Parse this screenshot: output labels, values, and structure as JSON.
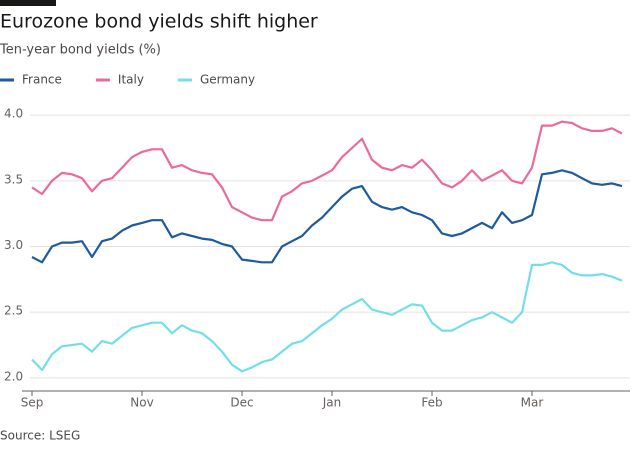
{
  "chart_data": {
    "type": "line",
    "title": "Eurozone bond yields shift higher",
    "subtitle": "Ten-year bond yields (%)",
    "source": "Source: LSEG",
    "categories": [
      "Sep",
      null,
      null,
      null,
      null,
      null,
      null,
      null,
      null,
      null,
      null,
      "Nov",
      null,
      null,
      null,
      null,
      null,
      null,
      null,
      null,
      null,
      "Dec",
      null,
      null,
      null,
      null,
      null,
      null,
      null,
      null,
      "Jan",
      null,
      null,
      null,
      null,
      null,
      null,
      null,
      null,
      null,
      "Feb",
      null,
      null,
      null,
      null,
      null,
      null,
      null,
      null,
      null,
      "Mar",
      null,
      null,
      null,
      null,
      null,
      null,
      null,
      null,
      null
    ],
    "series": [
      {
        "name": "France",
        "color": "#1d5a9e",
        "values": [
          2.92,
          2.88,
          3.0,
          3.03,
          3.03,
          3.04,
          2.92,
          3.04,
          3.06,
          3.12,
          3.16,
          3.18,
          3.2,
          3.2,
          3.07,
          3.1,
          3.08,
          3.06,
          3.05,
          3.02,
          3.0,
          2.9,
          2.89,
          2.88,
          2.88,
          3.0,
          3.04,
          3.08,
          3.16,
          3.22,
          3.3,
          3.38,
          3.44,
          3.46,
          3.34,
          3.3,
          3.28,
          3.3,
          3.26,
          3.24,
          3.2,
          3.1,
          3.08,
          3.1,
          3.14,
          3.18,
          3.14,
          3.26,
          3.18,
          3.2,
          3.24,
          3.55,
          3.56,
          3.58,
          3.56,
          3.52,
          3.48,
          3.47,
          3.48,
          3.46
        ]
      },
      {
        "name": "Italy",
        "color": "#eb6a9b",
        "values": [
          3.45,
          3.4,
          3.5,
          3.56,
          3.55,
          3.52,
          3.42,
          3.5,
          3.52,
          3.6,
          3.68,
          3.72,
          3.74,
          3.74,
          3.6,
          3.62,
          3.58,
          3.56,
          3.55,
          3.45,
          3.3,
          3.26,
          3.22,
          3.2,
          3.2,
          3.38,
          3.42,
          3.48,
          3.5,
          3.54,
          3.58,
          3.68,
          3.75,
          3.82,
          3.66,
          3.6,
          3.58,
          3.62,
          3.6,
          3.66,
          3.58,
          3.48,
          3.45,
          3.5,
          3.58,
          3.5,
          3.54,
          3.58,
          3.5,
          3.48,
          3.6,
          3.92,
          3.92,
          3.95,
          3.94,
          3.9,
          3.88,
          3.88,
          3.9,
          3.86
        ]
      },
      {
        "name": "Germany",
        "color": "#72dfe8",
        "values": [
          2.14,
          2.06,
          2.18,
          2.24,
          2.25,
          2.26,
          2.2,
          2.28,
          2.26,
          2.32,
          2.38,
          2.4,
          2.42,
          2.42,
          2.34,
          2.4,
          2.36,
          2.34,
          2.28,
          2.2,
          2.1,
          2.05,
          2.08,
          2.12,
          2.14,
          2.2,
          2.26,
          2.28,
          2.34,
          2.4,
          2.45,
          2.52,
          2.56,
          2.6,
          2.52,
          2.5,
          2.48,
          2.52,
          2.56,
          2.55,
          2.42,
          2.36,
          2.36,
          2.4,
          2.44,
          2.46,
          2.5,
          2.46,
          2.42,
          2.5,
          2.86,
          2.86,
          2.88,
          2.86,
          2.8,
          2.78,
          2.78,
          2.79,
          2.77,
          2.74
        ]
      }
    ],
    "ylim": [
      1.9,
      4.1
    ],
    "yticks": [
      {
        "value": 2,
        "label": "2.0"
      },
      {
        "value": 2.5,
        "label": "2.5"
      },
      {
        "value": 3,
        "label": "3.0"
      },
      {
        "value": 3.5,
        "label": "3.5"
      },
      {
        "value": 4,
        "label": "4.0"
      }
    ],
    "grid": true
  }
}
